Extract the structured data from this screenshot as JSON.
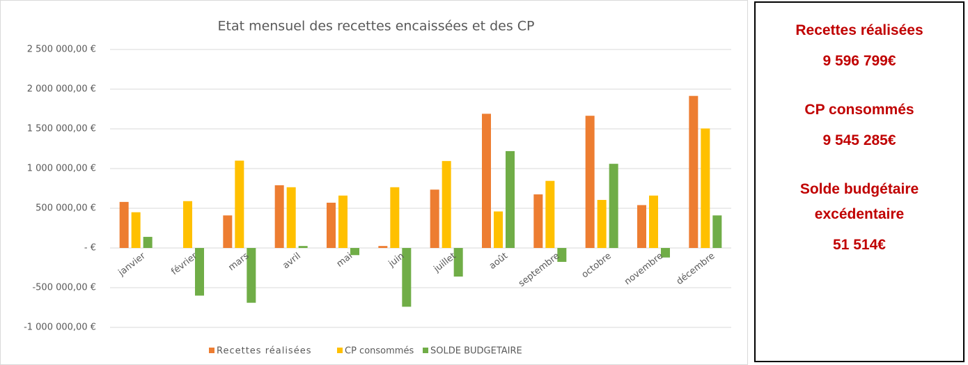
{
  "chart_data": {
    "type": "bar",
    "title": "Etat mensuel des recettes encaissées et des CP",
    "categories": [
      "janvier",
      "février",
      "mars",
      "avril",
      "mai",
      "juin",
      "juillet",
      "août",
      "septembre",
      "octobre",
      "novembre",
      "décembre"
    ],
    "series": [
      {
        "name": "Recettes réalisées",
        "color": "#ed7d31",
        "values": [
          580000,
          0,
          410000,
          790000,
          570000,
          25000,
          735000,
          1690000,
          675000,
          1665000,
          540000,
          1915000
        ]
      },
      {
        "name": "CP consommés",
        "color": "#ffc000",
        "values": [
          450000,
          590000,
          1100000,
          765000,
          660000,
          765000,
          1095000,
          460000,
          845000,
          605000,
          660000,
          1505000
        ]
      },
      {
        "name": "SOLDE BUDGETAIRE",
        "color": "#70ad47",
        "values": [
          140000,
          -600000,
          -690000,
          25000,
          -90000,
          -740000,
          -360000,
          1220000,
          -175000,
          1060000,
          -120000,
          410000
        ]
      }
    ],
    "ylim": [
      -1000000,
      2500000
    ],
    "yticks": [
      {
        "value": -1000000,
        "label": "-1 000 000,00 €"
      },
      {
        "value": -500000,
        "label": "-500 000,00 €"
      },
      {
        "value": 0,
        "label": "-   €"
      },
      {
        "value": 500000,
        "label": "500 000,00 €"
      },
      {
        "value": 1000000,
        "label": "1 000 000,00 €"
      },
      {
        "value": 1500000,
        "label": "1 500 000,00 €"
      },
      {
        "value": 2000000,
        "label": "2 000 000,00 €"
      },
      {
        "value": 2500000,
        "label": "2 500 000,00 €"
      }
    ],
    "grid": true,
    "legend": "bottom"
  },
  "panel": [
    {
      "label": "Recettes réalisées",
      "value": "9 596 799€"
    },
    {
      "label": "CP consommés",
      "value": "9 545 285€"
    },
    {
      "label": "Solde budgétaire excédentaire",
      "value": "51 514€"
    }
  ]
}
